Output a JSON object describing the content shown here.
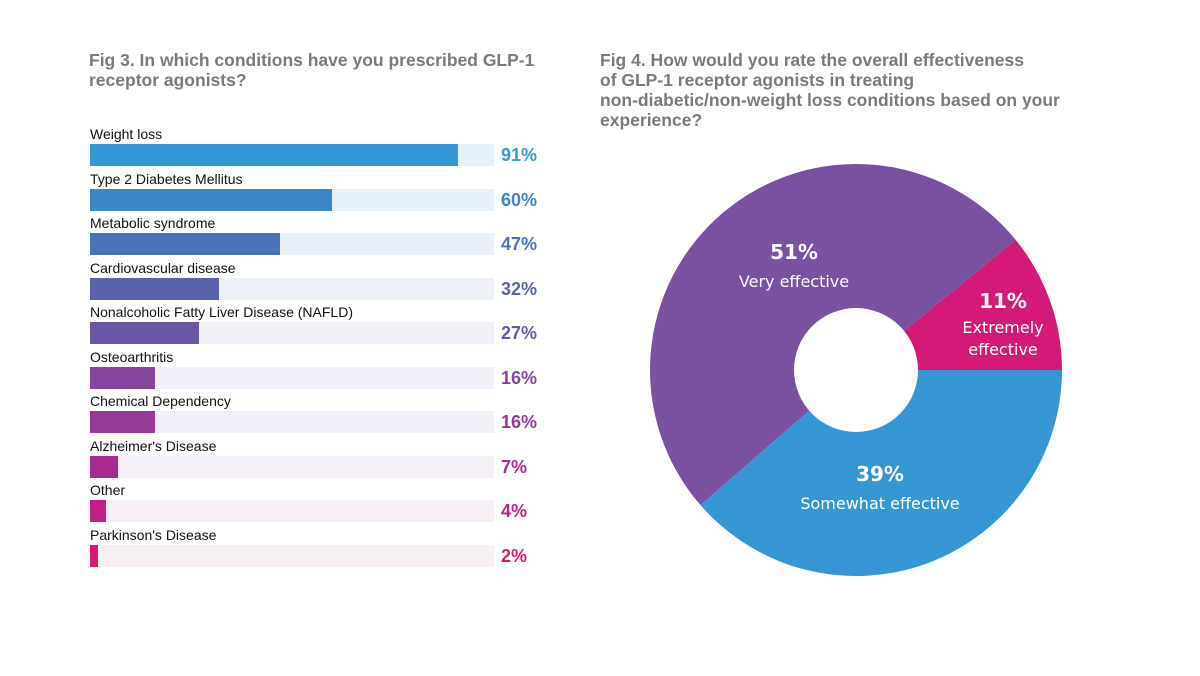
{
  "chart_data": [
    {
      "type": "bar",
      "orientation": "horizontal",
      "title": "Fig 3. In which conditions have you prescribed GLP-1 receptor agonists?",
      "xlabel": "",
      "ylabel": "",
      "xlim": [
        0,
        100
      ],
      "unit": "%",
      "categories": [
        "Weight loss",
        "Type 2 Diabetes Mellitus",
        "Metabolic syndrome",
        "Cardiovascular disease",
        "Nonalcoholic Fatty Liver Disease (NAFLD)",
        "Osteoarthritis",
        "Chemical Dependency",
        "Alzheimer's Disease",
        "Other",
        "Parkinson's Disease"
      ],
      "values": [
        91,
        60,
        47,
        32,
        27,
        16,
        16,
        7,
        4,
        2
      ],
      "labels": [
        "91%",
        "60%",
        "47%",
        "32%",
        "27%",
        "16%",
        "16%",
        "7%",
        "4%",
        "2%"
      ],
      "colors": [
        "#3598d4",
        "#3a86c8",
        "#4a72b8",
        "#5a62ae",
        "#6c56a6",
        "#86449e",
        "#963a98",
        "#a82a8e",
        "#c21f84",
        "#d61a74"
      ],
      "track_colors": [
        "#e4f1fb",
        "#e6f0fa",
        "#eaf0f9",
        "#eef0f8",
        "#f0eff8",
        "#f2eff8",
        "#f3eff8",
        "#f5eff7",
        "#f7eff5",
        "#f8eff3"
      ],
      "grid": false,
      "legend": "none"
    },
    {
      "type": "pie",
      "variant": "donut",
      "title": "Fig 4. How would you rate the overall effectiveness of GLP-1 receptor agonists in treating non-diabetic/non-weight loss conditions based on your experience?",
      "slices": [
        {
          "name": "Extremely effective",
          "value": 11,
          "label": "11%",
          "color": "#d31a78"
        },
        {
          "name": "Very effective",
          "value": 51,
          "label": "51%",
          "color": "#7a51a0"
        },
        {
          "name": "Somewhat effective",
          "value": 39,
          "label": "39%",
          "color": "#3596d3"
        }
      ],
      "legend": "none"
    }
  ],
  "fig3": {
    "title_line1": "Fig 3. In which conditions have you prescribed GLP-1",
    "title_line2": "receptor agonists?"
  },
  "fig4": {
    "title_line1": "Fig 4. How would you rate the overall effectiveness",
    "title_line2": "of GLP-1 receptor agonists in treating",
    "title_line3": "non-diabetic/non-weight loss conditions based on your",
    "title_line4": "experience?"
  }
}
